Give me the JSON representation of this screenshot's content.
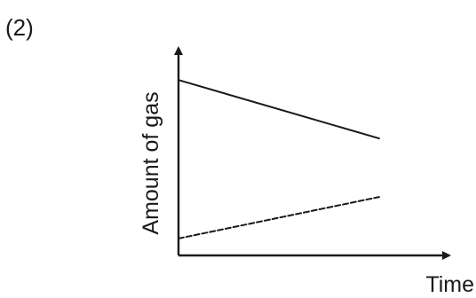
{
  "figure_label": "(2)",
  "chart_data": {
    "type": "line",
    "xlabel": "Time",
    "ylabel": "Amount of gas",
    "x": [
      0,
      1
    ],
    "xlim": [
      0,
      1.35
    ],
    "ylim": [
      0,
      1.1
    ],
    "grid": false,
    "legend": "none",
    "axis_ticks": false,
    "series": [
      {
        "style": "solid",
        "values": [
          0.93,
          0.62
        ]
      },
      {
        "style": "dashed",
        "values": [
          0.09,
          0.31
        ]
      }
    ]
  },
  "colors": {
    "ink": "#1a1a1a",
    "background": "#ffffff"
  }
}
